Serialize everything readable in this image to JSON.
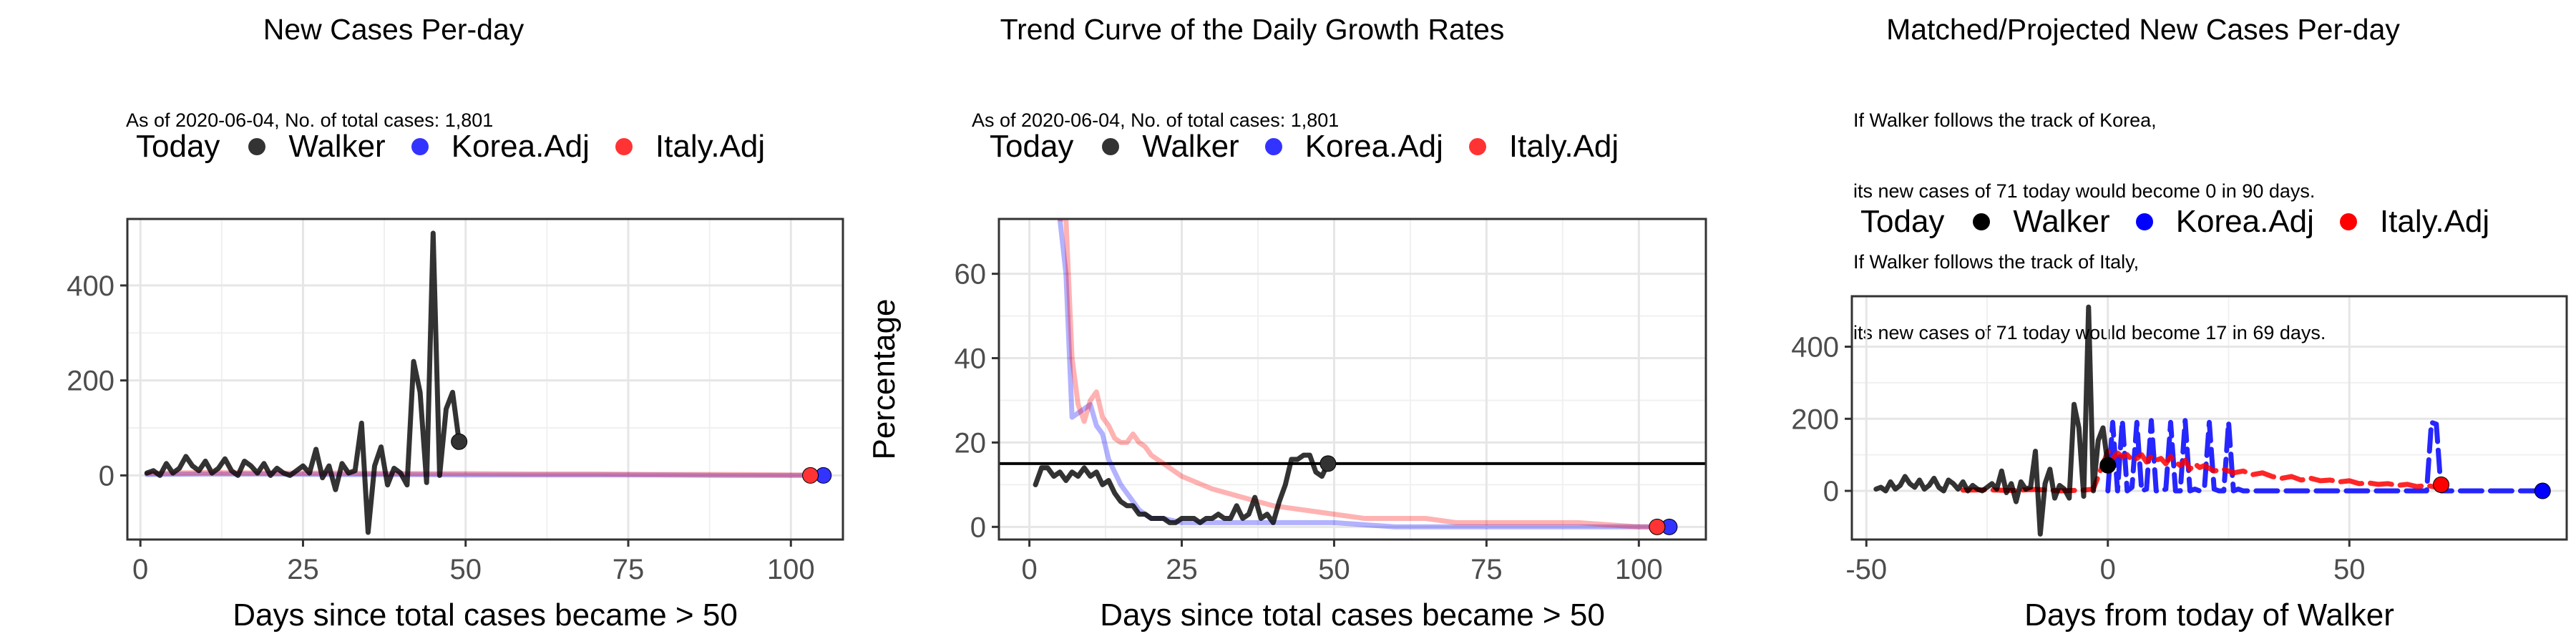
{
  "legend": {
    "title": "Today",
    "items": [
      {
        "label": "Walker",
        "color": "#000000"
      },
      {
        "label": "Korea.Adj",
        "color": "#0000ff"
      },
      {
        "label": "Italy.Adj",
        "color": "#ff0000"
      }
    ]
  },
  "panels": [
    {
      "title": "New Cases Per-day",
      "subtitle": [
        "As of 2020-06-04, No. of total cases: 1,801"
      ]
    },
    {
      "title": "Trend Curve of the Daily Growth Rates",
      "subtitle": [
        "As of 2020-06-04, No. of total cases: 1,801"
      ]
    },
    {
      "title": "Matched/Projected New Cases Per-day",
      "subtitle": [
        "If Walker follows the track of Korea,",
        "its new cases of 71 today would become 0 in 90 days.",
        "If Walker follows the track of Italy,",
        "its new cases of 71 today would become 17 in 69 days."
      ]
    }
  ],
  "chart_data": [
    {
      "type": "line",
      "title": "New Cases Per-day",
      "xlabel": "Days since total cases became > 50",
      "ylabel": "",
      "xlim": [
        -2,
        108
      ],
      "ylim": [
        -135,
        540
      ],
      "xticks": [
        0,
        25,
        50,
        75,
        100
      ],
      "yticks": [
        0,
        200,
        400
      ],
      "grid": true,
      "legend_position": "top",
      "series": [
        {
          "name": "Walker",
          "color": "#000000",
          "alpha": 0.8,
          "x": [
            1,
            2,
            3,
            4,
            5,
            6,
            7,
            8,
            9,
            10,
            11,
            12,
            13,
            14,
            15,
            16,
            17,
            18,
            19,
            20,
            21,
            22,
            23,
            24,
            25,
            26,
            27,
            28,
            29,
            30,
            31,
            32,
            33,
            34,
            35,
            36,
            37,
            38,
            39,
            40,
            41,
            42,
            43,
            44,
            45,
            46,
            47,
            48,
            49
          ],
          "y": [
            5,
            10,
            0,
            25,
            5,
            15,
            40,
            20,
            10,
            30,
            5,
            15,
            35,
            10,
            0,
            30,
            20,
            5,
            25,
            0,
            15,
            5,
            0,
            10,
            20,
            5,
            55,
            -5,
            20,
            -30,
            25,
            5,
            10,
            110,
            -120,
            20,
            60,
            -20,
            15,
            5,
            -20,
            240,
            175,
            -15,
            510,
            0,
            140,
            175,
            71
          ]
        },
        {
          "name": "Korea.Adj",
          "color": "#0000ff",
          "alpha": 0.3,
          "x": [
            1,
            10,
            20,
            30,
            40,
            50,
            60,
            70,
            80,
            90,
            100,
            105
          ],
          "y": [
            2,
            3,
            3,
            2,
            2,
            1,
            1,
            1,
            1,
            0,
            0,
            0
          ]
        },
        {
          "name": "Italy.Adj",
          "color": "#ff0000",
          "alpha": 0.3,
          "x": [
            1,
            10,
            20,
            30,
            40,
            50,
            60,
            70,
            80,
            90,
            100,
            103
          ],
          "y": [
            4,
            6,
            5,
            5,
            4,
            4,
            3,
            3,
            2,
            2,
            1,
            1
          ]
        }
      ],
      "today_points": [
        {
          "name": "Walker",
          "x": 49,
          "y": 71
        },
        {
          "name": "Korea.Adj",
          "x": 105,
          "y": 0
        },
        {
          "name": "Italy.Adj",
          "x": 103,
          "y": 0
        }
      ]
    },
    {
      "type": "line",
      "title": "Trend Curve of the Daily Growth Rates",
      "xlabel": "Days since total cases became > 50",
      "ylabel": "Percentage",
      "xlim": [
        -5,
        111
      ],
      "ylim": [
        -3,
        73
      ],
      "xticks": [
        0,
        25,
        50,
        75,
        100
      ],
      "yticks": [
        0,
        20,
        40,
        60
      ],
      "grid": true,
      "hline": 15,
      "legend_position": "top",
      "series": [
        {
          "name": "Walker",
          "color": "#000000",
          "alpha": 0.8,
          "x": [
            1,
            2,
            3,
            4,
            5,
            6,
            7,
            8,
            9,
            10,
            11,
            12,
            13,
            14,
            15,
            16,
            17,
            18,
            19,
            20,
            21,
            22,
            23,
            24,
            25,
            26,
            27,
            28,
            29,
            30,
            31,
            32,
            33,
            34,
            35,
            36,
            37,
            38,
            39,
            40,
            41,
            42,
            43,
            44,
            45,
            46,
            47,
            48,
            49
          ],
          "y": [
            10,
            14,
            14,
            12,
            13,
            11,
            13,
            12,
            14,
            12,
            13,
            10,
            11,
            8,
            6,
            5,
            5,
            3,
            3,
            2,
            2,
            2,
            1,
            1,
            2,
            2,
            2,
            1,
            2,
            2,
            3,
            2,
            2,
            5,
            2,
            3,
            7,
            2,
            3,
            1,
            6,
            10,
            16,
            16,
            17,
            17,
            13,
            12,
            15
          ]
        },
        {
          "name": "Korea.Adj",
          "color": "#0000ff",
          "alpha": 0.3,
          "x": [
            5,
            6,
            7,
            8,
            9,
            10,
            11,
            12,
            13,
            14,
            15,
            16,
            17,
            18,
            19,
            20,
            22,
            25,
            30,
            40,
            50,
            60,
            70,
            80,
            90,
            100,
            105
          ],
          "y": [
            73,
            60,
            26,
            27,
            28,
            29,
            24,
            22,
            16,
            13,
            10,
            8,
            6,
            4,
            3,
            2,
            2,
            1,
            1,
            1,
            1,
            0,
            0,
            0,
            0,
            0,
            0
          ]
        },
        {
          "name": "Italy.Adj",
          "color": "#ff0000",
          "alpha": 0.3,
          "x": [
            5,
            6,
            7,
            8,
            9,
            10,
            11,
            12,
            13,
            14,
            15,
            16,
            17,
            18,
            19,
            20,
            22,
            25,
            30,
            35,
            40,
            45,
            50,
            55,
            60,
            65,
            70,
            75,
            80,
            90,
            100,
            103
          ],
          "y": [
            73,
            73,
            40,
            29,
            25,
            30,
            32,
            26,
            24,
            21,
            20,
            20,
            22,
            20,
            19,
            17,
            15,
            12,
            9,
            7,
            5,
            4,
            3,
            2,
            2,
            2,
            1,
            1,
            1,
            1,
            0,
            0
          ]
        }
      ],
      "today_points": [
        {
          "name": "Walker",
          "x": 49,
          "y": 15
        },
        {
          "name": "Korea.Adj",
          "x": 105,
          "y": 0
        },
        {
          "name": "Italy.Adj",
          "x": 103,
          "y": 0
        }
      ]
    },
    {
      "type": "line",
      "title": "Matched/Projected New Cases Per-day",
      "xlabel": "Days from today of Walker",
      "ylabel": "",
      "xlim": [
        -53,
        95
      ],
      "ylim": [
        -135,
        540
      ],
      "xticks": [
        -50,
        0,
        50
      ],
      "yticks": [
        0,
        200,
        400
      ],
      "grid": true,
      "legend_position": "top",
      "series": [
        {
          "name": "Walker",
          "color": "#000000",
          "alpha": 0.8,
          "x": [
            -48,
            -47,
            -46,
            -45,
            -44,
            -43,
            -42,
            -41,
            -40,
            -39,
            -38,
            -37,
            -36,
            -35,
            -34,
            -33,
            -32,
            -31,
            -30,
            -29,
            -28,
            -27,
            -26,
            -25,
            -24,
            -23,
            -22,
            -21,
            -20,
            -19,
            -18,
            -17,
            -16,
            -15,
            -14,
            -13,
            -12,
            -11,
            -10,
            -9,
            -8,
            -7,
            -6,
            -5,
            -4,
            -3,
            -2,
            -1,
            0
          ],
          "y": [
            5,
            10,
            0,
            25,
            5,
            15,
            40,
            20,
            10,
            30,
            5,
            15,
            35,
            10,
            0,
            30,
            20,
            5,
            25,
            0,
            15,
            5,
            0,
            10,
            20,
            5,
            55,
            -5,
            20,
            -30,
            25,
            5,
            10,
            110,
            -120,
            20,
            60,
            -20,
            15,
            5,
            -20,
            240,
            175,
            -15,
            510,
            0,
            140,
            175,
            71
          ]
        },
        {
          "name": "Korea.Adj",
          "color": "#0000ff",
          "dashed": true,
          "x": [
            0,
            1,
            2,
            3,
            4,
            5,
            6,
            7,
            8,
            9,
            10,
            11,
            12,
            13,
            14,
            15,
            16,
            17,
            18,
            19,
            20,
            21,
            22,
            23,
            24,
            25,
            26,
            27,
            28,
            29,
            30,
            31,
            32,
            33,
            34,
            35,
            36,
            37,
            38,
            39,
            40,
            41,
            42,
            43,
            44,
            45,
            46,
            47,
            48,
            49,
            50,
            55,
            60,
            65,
            66,
            67,
            68,
            69,
            70,
            75,
            80,
            85,
            90
          ],
          "y": [
            0,
            190,
            0,
            195,
            0,
            10,
            190,
            0,
            5,
            195,
            0,
            0,
            5,
            190,
            0,
            0,
            195,
            0,
            5,
            0,
            10,
            190,
            5,
            0,
            0,
            190,
            0,
            5,
            0,
            0,
            0,
            0,
            0,
            0,
            0,
            0,
            0,
            0,
            0,
            0,
            0,
            0,
            0,
            0,
            0,
            0,
            0,
            0,
            0,
            0,
            0,
            0,
            0,
            0,
            0,
            190,
            185,
            0,
            0,
            0,
            0,
            0,
            0
          ]
        },
        {
          "name": "Italy.Adj",
          "color": "#ff0000",
          "dashed": true,
          "x": [
            -30,
            -25,
            -20,
            -15,
            -10,
            -5,
            -3,
            0,
            1,
            2,
            3,
            4,
            5,
            6,
            7,
            8,
            9,
            10,
            11,
            12,
            13,
            14,
            15,
            16,
            17,
            18,
            19,
            20,
            22,
            24,
            26,
            28,
            30,
            32,
            34,
            36,
            38,
            40,
            42,
            44,
            46,
            48,
            50,
            52,
            54,
            56,
            58,
            60,
            62,
            64,
            66,
            68,
            69
          ],
          "y": [
            2,
            3,
            1,
            4,
            0,
            2,
            5,
            110,
            90,
            105,
            95,
            100,
            85,
            90,
            100,
            80,
            95,
            85,
            90,
            75,
            95,
            80,
            70,
            85,
            60,
            75,
            65,
            70,
            55,
            60,
            50,
            55,
            45,
            50,
            40,
            35,
            40,
            30,
            35,
            28,
            30,
            25,
            28,
            20,
            22,
            18,
            20,
            15,
            18,
            12,
            15,
            10,
            17
          ]
        }
      ],
      "today_points": [
        {
          "name": "Walker",
          "x": 0,
          "y": 71
        },
        {
          "name": "Korea.Adj",
          "x": 90,
          "y": 0
        },
        {
          "name": "Italy.Adj",
          "x": 69,
          "y": 17
        }
      ]
    }
  ]
}
